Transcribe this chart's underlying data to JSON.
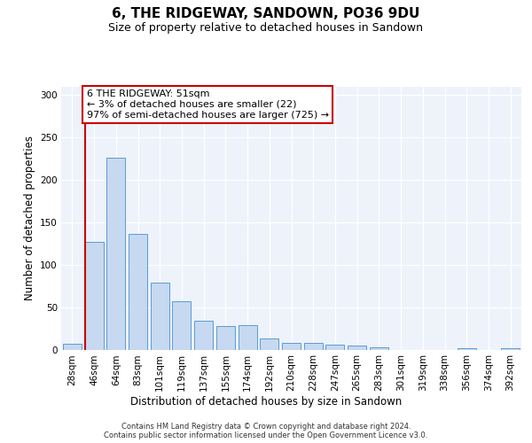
{
  "title": "6, THE RIDGEWAY, SANDOWN, PO36 9DU",
  "subtitle": "Size of property relative to detached houses in Sandown",
  "xlabel": "Distribution of detached houses by size in Sandown",
  "ylabel": "Number of detached properties",
  "bin_labels": [
    "28sqm",
    "46sqm",
    "64sqm",
    "83sqm",
    "101sqm",
    "119sqm",
    "137sqm",
    "155sqm",
    "174sqm",
    "192sqm",
    "210sqm",
    "228sqm",
    "247sqm",
    "265sqm",
    "283sqm",
    "301sqm",
    "319sqm",
    "338sqm",
    "356sqm",
    "374sqm",
    "392sqm"
  ],
  "bar_values": [
    7,
    127,
    226,
    137,
    79,
    57,
    34,
    28,
    29,
    14,
    8,
    8,
    6,
    5,
    3,
    0,
    0,
    0,
    2,
    0,
    2
  ],
  "bar_color": "#c6d9f0",
  "bar_edge_color": "#5b9bd5",
  "vline_color": "#cc0000",
  "vline_x_index": 1,
  "bar_width": 0.85,
  "annotation_text": "6 THE RIDGEWAY: 51sqm\n← 3% of detached houses are smaller (22)\n97% of semi-detached houses are larger (725) →",
  "annotation_box_facecolor": "#ffffff",
  "annotation_box_edgecolor": "#cc0000",
  "ylim": [
    0,
    310
  ],
  "yticks": [
    0,
    50,
    100,
    150,
    200,
    250,
    300
  ],
  "footer_text": "Contains HM Land Registry data © Crown copyright and database right 2024.\nContains public sector information licensed under the Open Government Licence v3.0.",
  "plot_bg_color": "#edf2fb",
  "grid_color": "#ffffff",
  "title_fontsize": 11,
  "subtitle_fontsize": 9,
  "ylabel_fontsize": 8.5,
  "xlabel_fontsize": 8.5,
  "tick_fontsize": 7.5,
  "footer_fontsize": 6.0,
  "annotation_fontsize": 8.0
}
